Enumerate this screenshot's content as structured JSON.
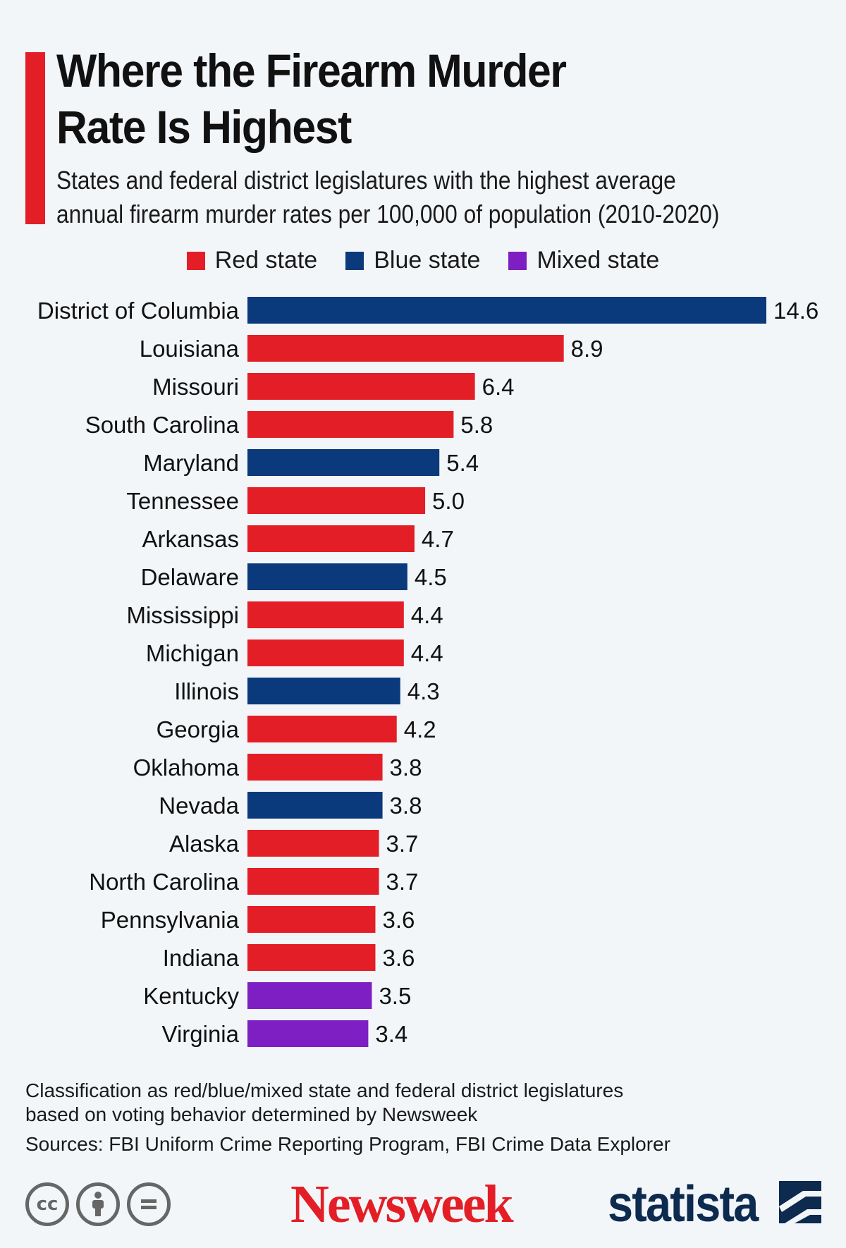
{
  "header": {
    "title_line1": "Where the Firearm Murder",
    "title_line2": "Rate Is Highest",
    "subtitle_line1": "States and federal district legislatures with the highest average",
    "subtitle_line2": "annual firearm murder rates per 100,000 of population (2010-2020)"
  },
  "colors": {
    "red": "#e41e26",
    "blue": "#0b3a7c",
    "mixed": "#7e1fc3",
    "accent": "#e41e26"
  },
  "legend": [
    {
      "label": "Red state",
      "key": "red"
    },
    {
      "label": "Blue state",
      "key": "blue"
    },
    {
      "label": "Mixed state",
      "key": "mixed"
    }
  ],
  "chart_data": {
    "type": "bar",
    "orientation": "horizontal",
    "title": "Where the Firearm Murder Rate Is Highest",
    "xlabel": "",
    "ylabel": "",
    "xlim": [
      0,
      14.6
    ],
    "categories": [
      "District of Columbia",
      "Louisiana",
      "Missouri",
      "South Carolina",
      "Maryland",
      "Tennessee",
      "Arkansas",
      "Delaware",
      "Mississippi",
      "Michigan",
      "Illinois",
      "Georgia",
      "Oklahoma",
      "Nevada",
      "Alaska",
      "North Carolina",
      "Pennsylvania",
      "Indiana",
      "Kentucky",
      "Virginia"
    ],
    "values": [
      14.6,
      8.9,
      6.4,
      5.8,
      5.4,
      5.0,
      4.7,
      4.5,
      4.4,
      4.4,
      4.3,
      4.2,
      3.8,
      3.8,
      3.7,
      3.7,
      3.6,
      3.6,
      3.5,
      3.4
    ],
    "value_labels": [
      "14.6",
      "8.9",
      "6.4",
      "5.8",
      "5.4",
      "5.0",
      "4.7",
      "4.5",
      "4.4",
      "4.4",
      "4.3",
      "4.2",
      "3.8",
      "3.8",
      "3.7",
      "3.7",
      "3.6",
      "3.6",
      "3.5",
      "3.4"
    ],
    "party": [
      "blue",
      "red",
      "red",
      "red",
      "blue",
      "red",
      "red",
      "blue",
      "red",
      "red",
      "blue",
      "red",
      "red",
      "blue",
      "red",
      "red",
      "red",
      "red",
      "mixed",
      "mixed"
    ],
    "grid": false
  },
  "notes": {
    "classification_line1": "Classification as red/blue/mixed state and federal district legislatures",
    "classification_line2": "based on voting behavior determined by Newsweek",
    "sources": "Sources: FBI Uniform Crime Reporting Program, FBI Crime Data Explorer"
  },
  "footer": {
    "cc_label": "cc",
    "newsweek": "Newsweek",
    "statista": "statista"
  }
}
